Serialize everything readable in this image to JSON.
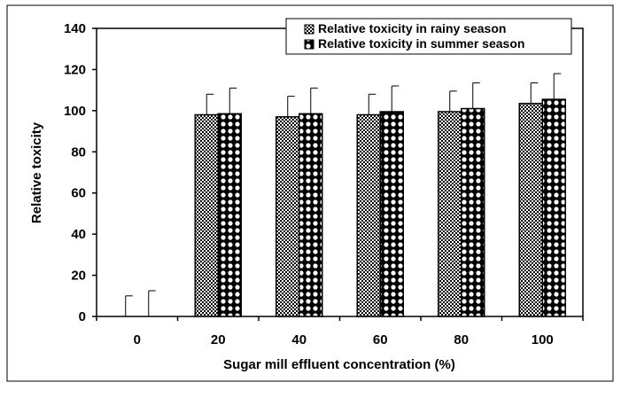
{
  "chart_data": {
    "type": "bar",
    "title": "",
    "xlabel": "Sugar mill effluent concentration (%)",
    "ylabel": "Relative toxicity",
    "categories": [
      "0",
      "20",
      "40",
      "60",
      "80",
      "100"
    ],
    "ylim": [
      0,
      140
    ],
    "yticks": [
      "0",
      "20",
      "40",
      "60",
      "80",
      "100",
      "120",
      "140"
    ],
    "grid": false,
    "legend_position": "top-right",
    "series": [
      {
        "name": "Relative toxicity in rainy season",
        "values": [
          0,
          98,
          97,
          98,
          99.5,
          103.5
        ],
        "error": [
          10,
          10,
          10,
          10,
          10,
          10
        ],
        "pattern": "dense-dots",
        "color": "#000000"
      },
      {
        "name": "Relative toxicity in summer season",
        "values": [
          0,
          98.5,
          98.5,
          99.5,
          101,
          105.5
        ],
        "error": [
          12.5,
          12.5,
          12.5,
          12.5,
          12.5,
          12.5
        ],
        "pattern": "circles",
        "color": "#000000"
      }
    ]
  }
}
